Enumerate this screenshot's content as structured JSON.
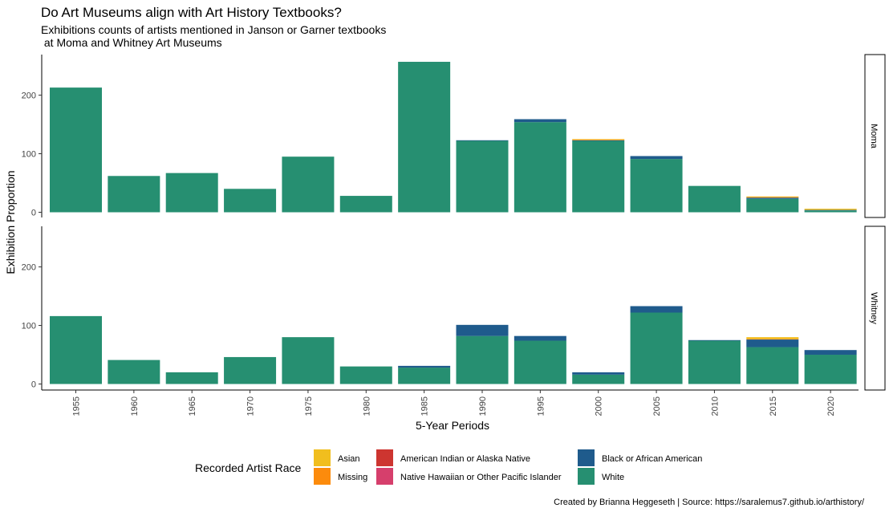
{
  "chart_data": {
    "type": "bar",
    "stacked": true,
    "title": "Do Art Museums align with Art History Textbooks?",
    "subtitle_lines": [
      "Exhibitions counts of artists mentioned in Janson or Garner textbooks",
      " at Moma and Whitney Art Museums"
    ],
    "xlabel": "5-Year Periods",
    "ylabel": "Exhibition Proportion",
    "ylim": [
      0,
      272
    ],
    "yticks": [
      "0",
      "100",
      "200"
    ],
    "categories": [
      "1955",
      "1960",
      "1965",
      "1970",
      "1975",
      "1980",
      "1985",
      "1990",
      "1995",
      "2000",
      "2005",
      "2010",
      "2015",
      "2020"
    ],
    "legend": {
      "title": "Recorded Artist Race",
      "position": "bottom",
      "order": [
        "Asian",
        "Missing",
        "American Indian or Alaska Native",
        "Native Hawaiian or Other Pacific Islander",
        "Black or African American",
        "White"
      ]
    },
    "colors": {
      "Asian": "#f1be1e",
      "Missing": "#fc8b0c",
      "American Indian or Alaska Native": "#cd3530",
      "Native Hawaiian or Other Pacific Islander": "#d63f6c",
      "Black or African American": "#1f5b8c",
      "White": "#268f71"
    },
    "stack_order": [
      "White",
      "Black or African American",
      "Native Hawaiian or Other Pacific Islander",
      "American Indian or Alaska Native",
      "Missing",
      "Asian"
    ],
    "panels": [
      {
        "name": "Moma",
        "series": [
          {
            "name": "White",
            "values": [
              213,
              62,
              67,
              40,
              95,
              28,
              257,
              122,
              154,
              122,
              91,
              45,
              23,
              3
            ]
          },
          {
            "name": "Black or African American",
            "values": [
              0,
              0,
              0,
              0,
              0,
              0,
              0,
              1,
              5,
              1,
              5,
              0,
              2,
              1
            ]
          },
          {
            "name": "Native Hawaiian or Other Pacific Islander",
            "values": [
              0,
              0,
              0,
              0,
              0,
              0,
              0,
              0,
              0,
              0,
              0,
              0,
              0,
              0
            ]
          },
          {
            "name": "American Indian or Alaska Native",
            "values": [
              0,
              0,
              0,
              0,
              0,
              0,
              0,
              0,
              0,
              0,
              0,
              0,
              0,
              0
            ]
          },
          {
            "name": "Missing",
            "values": [
              0,
              0,
              0,
              0,
              0,
              0,
              0,
              0,
              0,
              1,
              0,
              0,
              1,
              0
            ]
          },
          {
            "name": "Asian",
            "values": [
              0,
              0,
              0,
              0,
              0,
              0,
              0,
              0,
              0,
              1,
              0,
              0,
              1,
              2
            ]
          }
        ]
      },
      {
        "name": "Whitney",
        "series": [
          {
            "name": "White",
            "values": [
              116,
              41,
              20,
              46,
              80,
              30,
              28,
              82,
              74,
              16,
              122,
              74,
              63,
              50
            ]
          },
          {
            "name": "Black or African American",
            "values": [
              0,
              0,
              0,
              0,
              0,
              0,
              3,
              19,
              8,
              4,
              11,
              1,
              13,
              8
            ]
          },
          {
            "name": "Native Hawaiian or Other Pacific Islander",
            "values": [
              0,
              0,
              0,
              0,
              0,
              0,
              0,
              0,
              0,
              0,
              0,
              0,
              0,
              0
            ]
          },
          {
            "name": "American Indian or Alaska Native",
            "values": [
              0,
              0,
              0,
              0,
              0,
              0,
              0,
              0,
              0,
              0,
              0,
              0,
              0,
              0
            ]
          },
          {
            "name": "Missing",
            "values": [
              0,
              0,
              0,
              0,
              0,
              0,
              0,
              0,
              0,
              0,
              0,
              0,
              1,
              0
            ]
          },
          {
            "name": "Asian",
            "values": [
              0,
              0,
              0,
              0,
              0,
              0,
              0,
              0,
              0,
              0,
              0,
              0,
              3,
              0
            ]
          }
        ]
      }
    ]
  },
  "caption": "Created by Brianna Heggeseth | Source: https://saralemus7.github.io/arthistory/"
}
